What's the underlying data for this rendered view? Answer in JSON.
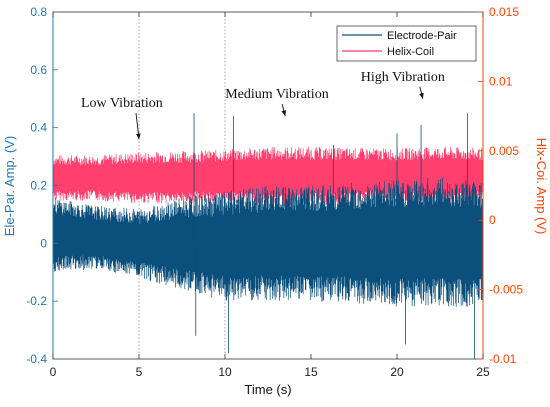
{
  "chart_data": {
    "type": "line",
    "xlabel": "Time (s)",
    "ylabel_left": "Ele-Par. Amp. (V)",
    "ylabel_right": "Hlx-Coi. Amp (V)",
    "xlim": [
      0,
      25
    ],
    "ylim_left": [
      -0.4,
      0.8
    ],
    "ylim_right": [
      -0.01,
      0.015
    ],
    "x_ticks": [
      "0",
      "5",
      "10",
      "15",
      "20",
      "25"
    ],
    "y_ticks_left": [
      "-0.4",
      "-0.2",
      "0",
      "0.2",
      "0.4",
      "0.6",
      "0.8"
    ],
    "y_ticks_right": [
      "-0.01",
      "-0.005",
      "0",
      "0.005",
      "0.01",
      "0.015"
    ],
    "vertical_markers": [
      5,
      10
    ],
    "grid": false,
    "legend_position": "top-right",
    "series": [
      {
        "name": "Electrode-Pair",
        "axis": "left",
        "color": "#0b4f7c",
        "sampled_x": [
          0,
          2.5,
          5,
          7.5,
          10,
          12.5,
          15,
          17.5,
          20,
          22.5,
          25
        ],
        "envelope_max": [
          0.16,
          0.13,
          0.12,
          0.16,
          0.18,
          0.2,
          0.2,
          0.21,
          0.22,
          0.23,
          0.22
        ],
        "envelope_min": [
          -0.1,
          -0.09,
          -0.12,
          -0.16,
          -0.2,
          -0.2,
          -0.2,
          -0.21,
          -0.22,
          -0.22,
          -0.22
        ],
        "spikes": [
          {
            "x": 8.2,
            "y": 0.45
          },
          {
            "x": 8.3,
            "y": -0.32
          },
          {
            "x": 10.2,
            "y": -0.38
          },
          {
            "x": 10.5,
            "y": 0.44
          },
          {
            "x": 16.3,
            "y": 0.34
          },
          {
            "x": 20.0,
            "y": 0.38
          },
          {
            "x": 20.5,
            "y": -0.35
          },
          {
            "x": 21.4,
            "y": 0.41
          },
          {
            "x": 24.1,
            "y": 0.45
          },
          {
            "x": 24.5,
            "y": -0.4
          }
        ]
      },
      {
        "name": "Helix-Coil",
        "axis": "right",
        "color": "#ff3f6e",
        "sampled_x": [
          0,
          2.5,
          5,
          7.5,
          10,
          12.5,
          15,
          17.5,
          20,
          22.5,
          25
        ],
        "envelope_max": [
          0.0047,
          0.0047,
          0.0049,
          0.005,
          0.0051,
          0.0053,
          0.0053,
          0.0052,
          0.0052,
          0.0053,
          0.0052
        ],
        "envelope_min": [
          0.0014,
          0.0014,
          0.0012,
          0.0012,
          0.0012,
          0.001,
          0.001,
          0.0012,
          0.0012,
          0.0011,
          0.0012
        ]
      }
    ],
    "annotations": [
      {
        "text": "Low Vibration",
        "arrow_x": 5,
        "arrow_y": 0.36
      },
      {
        "text": "Medium Vibration",
        "arrow_x": 13.5,
        "arrow_y": 0.44
      },
      {
        "text": "High Vibration",
        "arrow_x": 21.5,
        "arrow_y": 0.5
      }
    ]
  }
}
